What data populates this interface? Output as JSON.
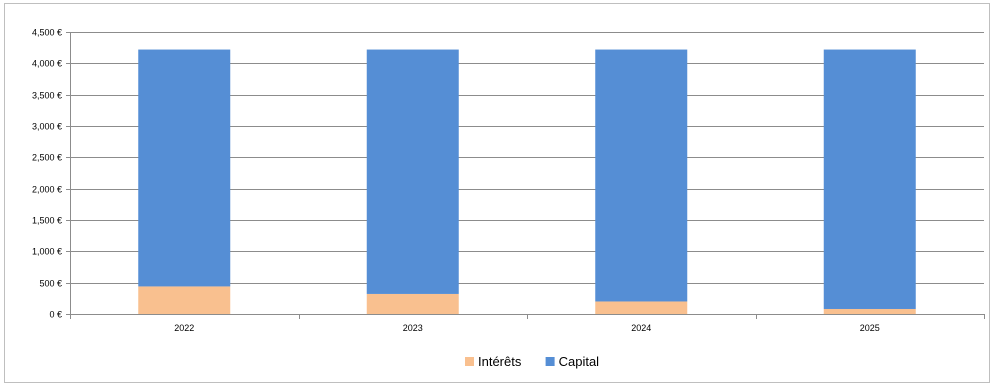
{
  "chart_data": {
    "type": "bar",
    "stacked": true,
    "categories": [
      "2022",
      "2023",
      "2024",
      "2025"
    ],
    "series": [
      {
        "name": "Intérêts",
        "values": [
          440,
          320,
          200,
          80
        ],
        "color": "#F9C08F"
      },
      {
        "name": "Capital",
        "values": [
          3780,
          3900,
          4020,
          4140
        ],
        "color": "#558ED5"
      }
    ],
    "title": "",
    "xlabel": "",
    "ylabel": "",
    "ylim": [
      0,
      4500
    ],
    "yticks": [
      "0 €",
      "500 €",
      "1,000 €",
      "1,500 €",
      "2,000 €",
      "2,500 €",
      "3,000 €",
      "3,500 €",
      "4,000 €",
      "4,500 €"
    ],
    "grid": true,
    "legend_position": "bottom"
  }
}
